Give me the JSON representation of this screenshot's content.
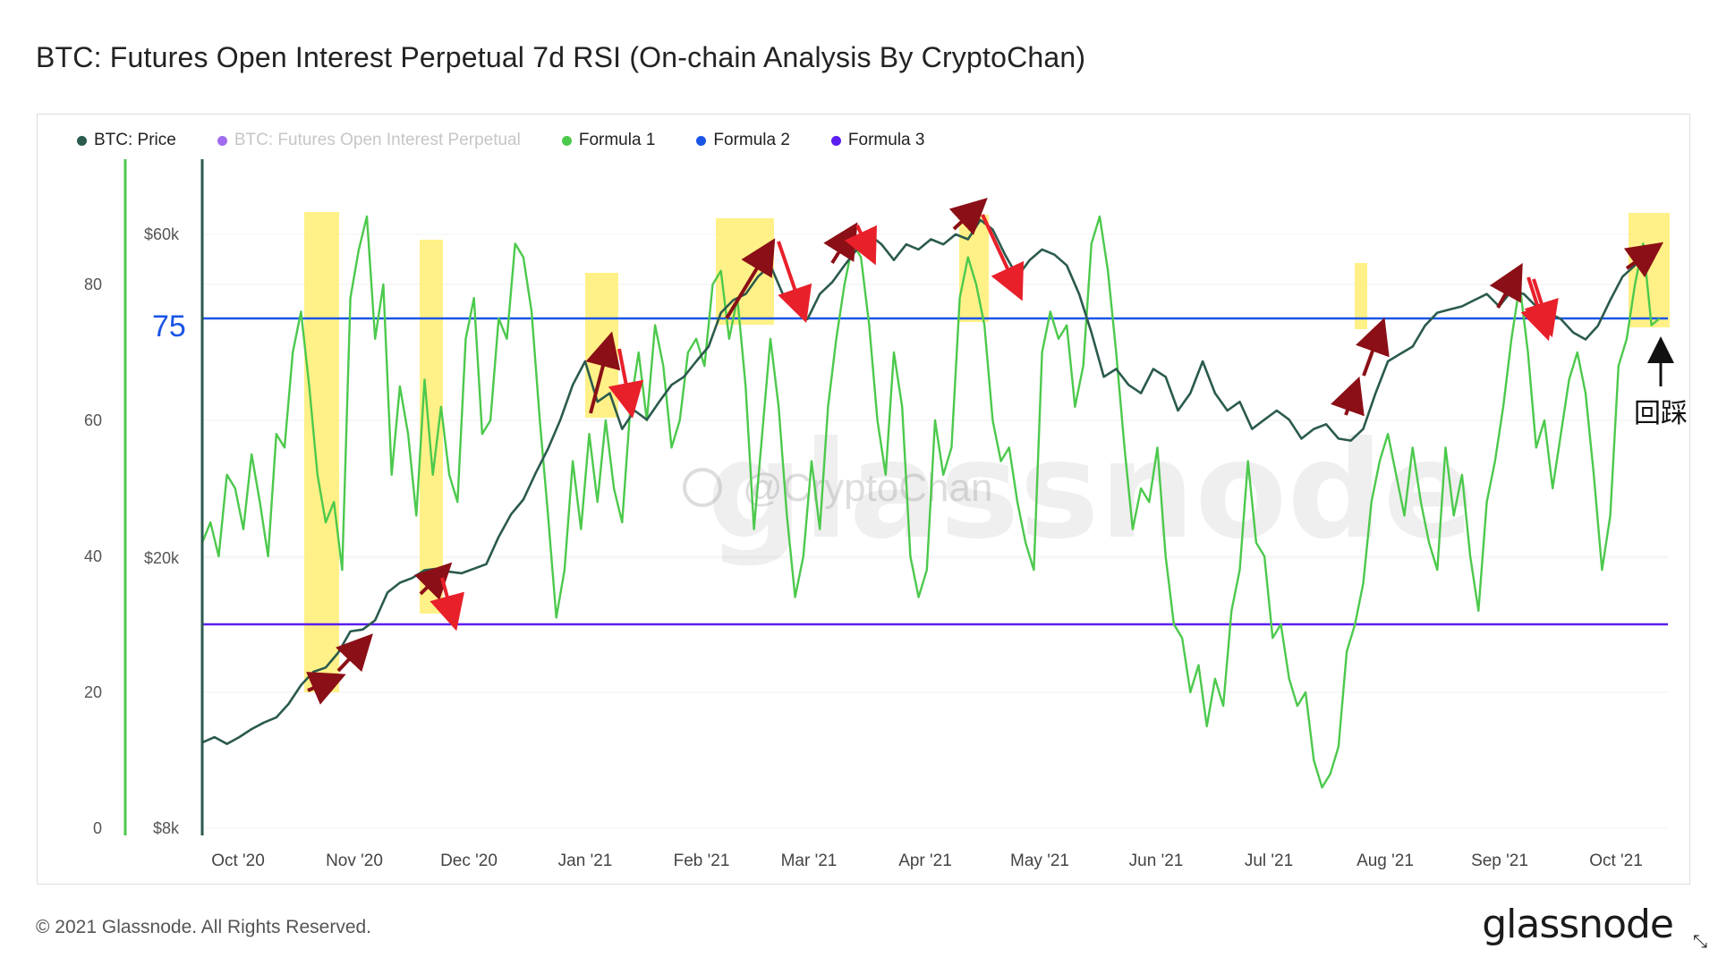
{
  "title": "BTC: Futures Open Interest Perpetual 7d RSI (On-chain Analysis By CryptoChan)",
  "legend": [
    {
      "label": "BTC: Price",
      "color": "#2b5a4e",
      "enabled": true
    },
    {
      "label": "BTC: Futures Open Interest Perpetual",
      "color": "#a06cf0",
      "enabled": false
    },
    {
      "label": "Formula 1",
      "color": "#4cc94c",
      "enabled": true
    },
    {
      "label": "Formula 2",
      "color": "#1a55e6",
      "enabled": true
    },
    {
      "label": "Formula 3",
      "color": "#5a1ef0",
      "enabled": true
    }
  ],
  "footer": "© 2021 Glassnode. All Rights Reserved.",
  "brand": "glassnode",
  "watermark": "glassnode",
  "weibo_tag": "@CryptoChan",
  "annotations": {
    "level_label": "75",
    "pullback_label": "回踩"
  },
  "chart_data": {
    "type": "line",
    "x_ticks": [
      "Oct '20",
      "Nov '20",
      "Dec '20",
      "Jan '21",
      "Feb '21",
      "Mar '21",
      "Apr '21",
      "May '21",
      "Jun '21",
      "Jul '21",
      "Aug '21",
      "Sep '21",
      "Oct '21"
    ],
    "y_left_ticks": [
      "0",
      "20",
      "40",
      "60",
      "80"
    ],
    "y_right_ticks": [
      "$8k",
      "$20k",
      "$60k"
    ],
    "ylim_left": [
      0,
      100
    ],
    "ylim_right_log": [
      8000,
      80000
    ],
    "colors": {
      "price": "#2b5a4e",
      "rsi": "#4cc94c",
      "formula2": "#1a55e6",
      "formula3": "#5a1ef0",
      "highlight": "#fff07a",
      "arrow_up": "#8b0f16",
      "arrow_down": "#e8202a"
    },
    "formula2_level": 75,
    "formula3_level": 30,
    "series_price": {
      "name": "BTC: Price",
      "values": [
        [
          0,
          10700
        ],
        [
          3,
          10900
        ],
        [
          6,
          10650
        ],
        [
          9,
          10900
        ],
        [
          12,
          11200
        ],
        [
          15,
          11450
        ],
        [
          18,
          11650
        ],
        [
          21,
          12200
        ],
        [
          24,
          13000
        ],
        [
          27,
          13600
        ],
        [
          30,
          13800
        ],
        [
          33,
          14500
        ],
        [
          36,
          15600
        ],
        [
          39,
          15700
        ],
        [
          42,
          16200
        ],
        [
          45,
          17800
        ],
        [
          48,
          18400
        ],
        [
          51,
          18700
        ],
        [
          54,
          19200
        ],
        [
          57,
          19300
        ],
        [
          60,
          19100
        ],
        [
          63,
          19000
        ],
        [
          66,
          19300
        ],
        [
          69,
          19600
        ],
        [
          72,
          21500
        ],
        [
          75,
          23200
        ],
        [
          78,
          24400
        ],
        [
          81,
          26700
        ],
        [
          84,
          29000
        ],
        [
          87,
          32000
        ],
        [
          90,
          36000
        ],
        [
          93,
          39000
        ],
        [
          96,
          34000
        ],
        [
          99,
          35000
        ],
        [
          102,
          31000
        ],
        [
          105,
          33000
        ],
        [
          108,
          32000
        ],
        [
          111,
          34000
        ],
        [
          114,
          36000
        ],
        [
          117,
          37000
        ],
        [
          120,
          39000
        ],
        [
          123,
          41000
        ],
        [
          126,
          46000
        ],
        [
          129,
          48000
        ],
        [
          132,
          49000
        ],
        [
          135,
          52000
        ],
        [
          138,
          54000
        ],
        [
          141,
          49000
        ],
        [
          144,
          47000
        ],
        [
          147,
          45000
        ],
        [
          150,
          49000
        ],
        [
          153,
          51000
        ],
        [
          156,
          54000
        ],
        [
          159,
          57000
        ],
        [
          162,
          60000
        ],
        [
          165,
          58000
        ],
        [
          168,
          55000
        ],
        [
          171,
          58000
        ],
        [
          174,
          57000
        ],
        [
          177,
          59000
        ],
        [
          180,
          58000
        ],
        [
          183,
          60000
        ],
        [
          186,
          59000
        ],
        [
          189,
          63000
        ],
        [
          192,
          61000
        ],
        [
          195,
          56000
        ],
        [
          198,
          52000
        ],
        [
          201,
          55000
        ],
        [
          204,
          57000
        ],
        [
          207,
          56000
        ],
        [
          210,
          54000
        ],
        [
          213,
          49000
        ],
        [
          216,
          43000
        ],
        [
          219,
          37000
        ],
        [
          222,
          38000
        ],
        [
          225,
          36000
        ],
        [
          228,
          35000
        ],
        [
          231,
          38000
        ],
        [
          234,
          37000
        ],
        [
          237,
          33000
        ],
        [
          240,
          35000
        ],
        [
          243,
          39000
        ],
        [
          246,
          35000
        ],
        [
          249,
          33000
        ],
        [
          252,
          34000
        ],
        [
          255,
          31000
        ],
        [
          258,
          32000
        ],
        [
          261,
          33000
        ],
        [
          264,
          32000
        ],
        [
          267,
          30000
        ],
        [
          270,
          31000
        ],
        [
          273,
          31500
        ],
        [
          276,
          30000
        ],
        [
          279,
          29800
        ],
        [
          282,
          31000
        ],
        [
          285,
          35000
        ],
        [
          288,
          39000
        ],
        [
          291,
          40000
        ],
        [
          294,
          41000
        ],
        [
          297,
          44000
        ],
        [
          300,
          46000
        ],
        [
          303,
          46500
        ],
        [
          306,
          47000
        ],
        [
          309,
          48000
        ],
        [
          312,
          49000
        ],
        [
          315,
          47000
        ],
        [
          318,
          49500
        ],
        [
          321,
          49000
        ],
        [
          324,
          47000
        ],
        [
          327,
          46000
        ],
        [
          330,
          45000
        ],
        [
          333,
          43000
        ],
        [
          336,
          42000
        ],
        [
          339,
          44000
        ],
        [
          342,
          48000
        ],
        [
          345,
          52000
        ],
        [
          348,
          54000
        ],
        [
          351,
          56000
        ],
        [
          354,
          57500
        ]
      ]
    },
    "series_rsi": {
      "name": "Formula 1",
      "values": [
        [
          0,
          42
        ],
        [
          2,
          45
        ],
        [
          4,
          40
        ],
        [
          6,
          52
        ],
        [
          8,
          50
        ],
        [
          10,
          44
        ],
        [
          12,
          55
        ],
        [
          14,
          48
        ],
        [
          16,
          40
        ],
        [
          18,
          58
        ],
        [
          20,
          56
        ],
        [
          22,
          70
        ],
        [
          24,
          76
        ],
        [
          26,
          65
        ],
        [
          28,
          52
        ],
        [
          30,
          45
        ],
        [
          32,
          48
        ],
        [
          34,
          38
        ],
        [
          36,
          78
        ],
        [
          38,
          85
        ],
        [
          40,
          90
        ],
        [
          42,
          72
        ],
        [
          44,
          80
        ],
        [
          46,
          52
        ],
        [
          48,
          65
        ],
        [
          50,
          58
        ],
        [
          52,
          46
        ],
        [
          54,
          66
        ],
        [
          56,
          52
        ],
        [
          58,
          62
        ],
        [
          60,
          52
        ],
        [
          62,
          48
        ],
        [
          64,
          72
        ],
        [
          66,
          78
        ],
        [
          68,
          58
        ],
        [
          70,
          60
        ],
        [
          72,
          75
        ],
        [
          74,
          72
        ],
        [
          76,
          86
        ],
        [
          78,
          84
        ],
        [
          80,
          76
        ],
        [
          82,
          60
        ],
        [
          84,
          46
        ],
        [
          86,
          31
        ],
        [
          88,
          38
        ],
        [
          90,
          54
        ],
        [
          92,
          44
        ],
        [
          94,
          58
        ],
        [
          96,
          48
        ],
        [
          98,
          60
        ],
        [
          100,
          50
        ],
        [
          102,
          45
        ],
        [
          104,
          62
        ],
        [
          106,
          70
        ],
        [
          108,
          60
        ],
        [
          110,
          74
        ],
        [
          112,
          68
        ],
        [
          114,
          56
        ],
        [
          116,
          60
        ],
        [
          118,
          70
        ],
        [
          120,
          72
        ],
        [
          122,
          68
        ],
        [
          124,
          80
        ],
        [
          126,
          82
        ],
        [
          128,
          72
        ],
        [
          130,
          78
        ],
        [
          132,
          65
        ],
        [
          134,
          44
        ],
        [
          136,
          58
        ],
        [
          138,
          72
        ],
        [
          140,
          62
        ],
        [
          142,
          46
        ],
        [
          144,
          34
        ],
        [
          146,
          40
        ],
        [
          148,
          54
        ],
        [
          150,
          44
        ],
        [
          152,
          62
        ],
        [
          154,
          72
        ],
        [
          156,
          80
        ],
        [
          158,
          86
        ],
        [
          160,
          84
        ],
        [
          162,
          74
        ],
        [
          164,
          60
        ],
        [
          166,
          52
        ],
        [
          168,
          70
        ],
        [
          170,
          62
        ],
        [
          172,
          40
        ],
        [
          174,
          34
        ],
        [
          176,
          38
        ],
        [
          178,
          60
        ],
        [
          180,
          52
        ],
        [
          182,
          56
        ],
        [
          184,
          78
        ],
        [
          186,
          84
        ],
        [
          188,
          80
        ],
        [
          190,
          74
        ],
        [
          192,
          60
        ],
        [
          194,
          54
        ],
        [
          196,
          56
        ],
        [
          198,
          48
        ],
        [
          200,
          42
        ],
        [
          202,
          38
        ],
        [
          204,
          70
        ],
        [
          206,
          76
        ],
        [
          208,
          72
        ],
        [
          210,
          74
        ],
        [
          212,
          62
        ],
        [
          214,
          68
        ],
        [
          216,
          86
        ],
        [
          218,
          90
        ],
        [
          220,
          82
        ],
        [
          222,
          70
        ],
        [
          224,
          56
        ],
        [
          226,
          44
        ],
        [
          228,
          50
        ],
        [
          230,
          48
        ],
        [
          232,
          56
        ],
        [
          234,
          40
        ],
        [
          236,
          30
        ],
        [
          238,
          28
        ],
        [
          240,
          20
        ],
        [
          242,
          24
        ],
        [
          244,
          15
        ],
        [
          246,
          22
        ],
        [
          248,
          18
        ],
        [
          250,
          32
        ],
        [
          252,
          38
        ],
        [
          254,
          54
        ],
        [
          256,
          42
        ],
        [
          258,
          40
        ],
        [
          260,
          28
        ],
        [
          262,
          30
        ],
        [
          264,
          22
        ],
        [
          266,
          18
        ],
        [
          268,
          20
        ],
        [
          270,
          10
        ],
        [
          272,
          6
        ],
        [
          274,
          8
        ],
        [
          276,
          12
        ],
        [
          278,
          26
        ],
        [
          280,
          30
        ],
        [
          282,
          36
        ],
        [
          284,
          48
        ],
        [
          286,
          54
        ],
        [
          288,
          58
        ],
        [
          290,
          52
        ],
        [
          292,
          46
        ],
        [
          294,
          56
        ],
        [
          296,
          48
        ],
        [
          298,
          42
        ],
        [
          300,
          38
        ],
        [
          302,
          56
        ],
        [
          304,
          46
        ],
        [
          306,
          52
        ],
        [
          308,
          40
        ],
        [
          310,
          32
        ],
        [
          312,
          48
        ],
        [
          314,
          54
        ],
        [
          316,
          62
        ],
        [
          318,
          72
        ],
        [
          320,
          80
        ],
        [
          322,
          70
        ],
        [
          324,
          56
        ],
        [
          326,
          60
        ],
        [
          328,
          50
        ],
        [
          330,
          58
        ],
        [
          332,
          66
        ],
        [
          334,
          70
        ],
        [
          336,
          64
        ],
        [
          338,
          52
        ],
        [
          340,
          38
        ],
        [
          342,
          46
        ],
        [
          344,
          68
        ],
        [
          346,
          72
        ],
        [
          348,
          80
        ],
        [
          350,
          86
        ],
        [
          352,
          74
        ],
        [
          354,
          75
        ]
      ]
    }
  }
}
